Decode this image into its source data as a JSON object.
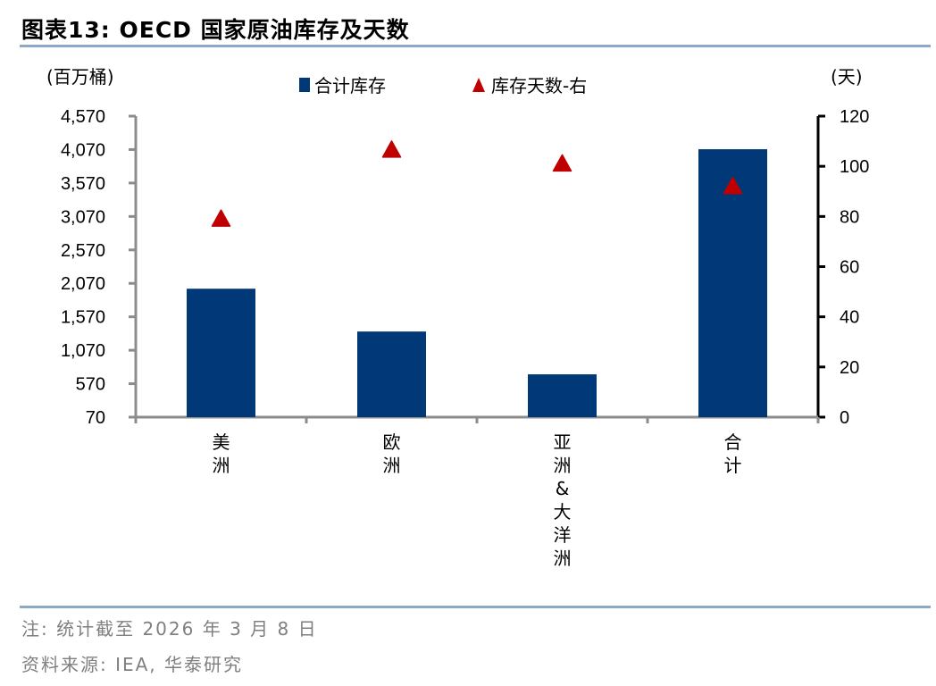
{
  "header": {
    "title": "图表13:  OECD 国家原油库存及天数"
  },
  "chart_data": {
    "type": "bar",
    "title": "OECD 国家原油库存及天数",
    "categories": [
      "美洲",
      "欧洲",
      "亚洲&大洋洲",
      "合计"
    ],
    "series": [
      {
        "name": "合计库存",
        "type": "bar",
        "axis": "left",
        "color": "#003878",
        "values": [
          1990,
          1350,
          710,
          4075
        ]
      },
      {
        "name": "库存天数-右",
        "type": "scatter",
        "marker": "triangle",
        "axis": "right",
        "color": "#C00000",
        "values": [
          79,
          106.5,
          101,
          92
        ]
      }
    ],
    "ylabel": "(百万桶)",
    "y2label": "(天)",
    "ylim": [
      70,
      4570
    ],
    "y2lim": [
      0,
      120
    ],
    "yticks": [
      "4,570",
      "4,070",
      "3,570",
      "3,070",
      "2,570",
      "2,070",
      "1,570",
      "1,070",
      "570",
      "70"
    ],
    "y2ticks": [
      "120",
      "100",
      "80",
      "60",
      "40",
      "20",
      "0"
    ],
    "legend_position": "top",
    "grid": false
  },
  "legend": {
    "bar_label": "合计库存",
    "marker_label": "库存天数-右"
  },
  "axes": {
    "left_unit": "(百万桶)",
    "right_unit": "(天)"
  },
  "footer": {
    "note": "注: 统计截至 2026 年 3 月 8 日",
    "source": "资料来源: IEA, 华泰研究"
  }
}
